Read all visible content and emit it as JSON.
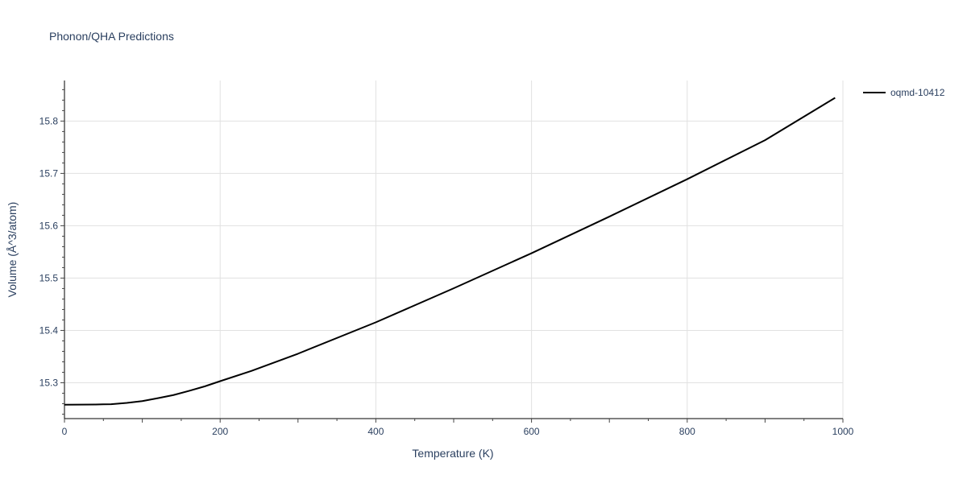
{
  "chart_data": {
    "type": "line",
    "title": "Phonon/QHA Predictions",
    "xlabel": "Temperature (K)",
    "ylabel": "Volume (Å^3/atom)",
    "xlim": [
      0,
      1000
    ],
    "ylim": [
      15.2315,
      15.8775
    ],
    "xticks": [
      0,
      200,
      400,
      600,
      800,
      1000
    ],
    "xtick_labels": [
      "0",
      "200",
      "400",
      "600",
      "800",
      "1000"
    ],
    "yticks": [
      15.3,
      15.4,
      15.5,
      15.6,
      15.7,
      15.8
    ],
    "ytick_labels": [
      "15.3",
      "15.4",
      "15.5",
      "15.6",
      "15.7",
      "15.8"
    ],
    "grid": true,
    "legend_position": "top-right",
    "series": [
      {
        "name": "oqmd-10412",
        "color": "#000000",
        "x": [
          0,
          20,
          40,
          60,
          80,
          100,
          120,
          140,
          160,
          180,
          200,
          240,
          300,
          400,
          500,
          600,
          700,
          800,
          900,
          990
        ],
        "y": [
          15.258,
          15.2582,
          15.2585,
          15.259,
          15.2615,
          15.265,
          15.2705,
          15.2765,
          15.2845,
          15.293,
          15.303,
          15.3225,
          15.3555,
          15.4155,
          15.4805,
          15.5475,
          15.6175,
          15.689,
          15.7635,
          15.8445
        ]
      }
    ]
  }
}
